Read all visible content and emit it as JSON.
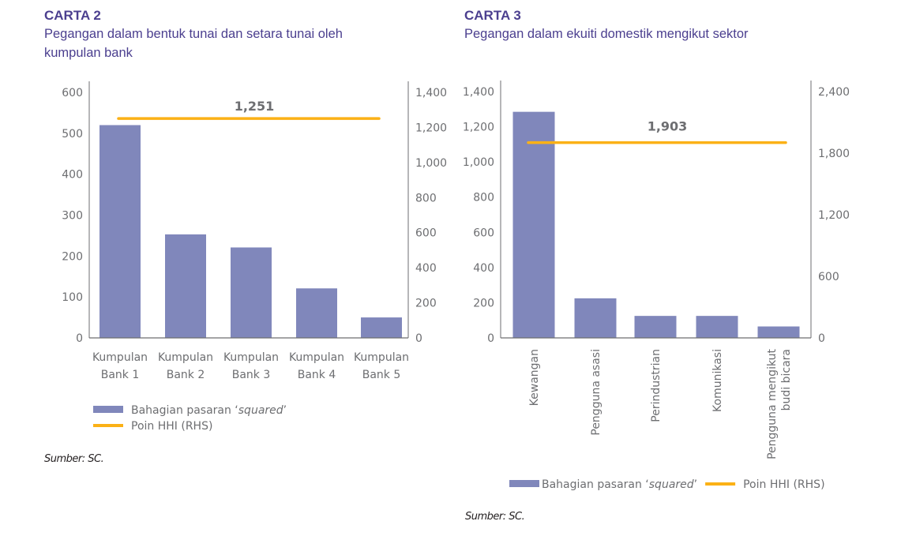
{
  "colors": {
    "bar": "#8087bb",
    "line": "#fbb116",
    "axis": "#6d6e71",
    "title": "#4b3f8f"
  },
  "chart_data": [
    {
      "type": "bar",
      "id": "carta-2",
      "title": "CARTA 2",
      "subtitle_lines": [
        "Pegangan dalam bentuk tunai dan setara tunai oleh",
        "kumpulan bank"
      ],
      "categories": [
        [
          "Kumpulan",
          "Bank 1"
        ],
        [
          "Kumpulan",
          "Bank 2"
        ],
        [
          "Kumpulan",
          "Bank 3"
        ],
        [
          "Kumpulan",
          "Bank 4"
        ],
        [
          "Kumpulan",
          "Bank 5"
        ]
      ],
      "series": [
        {
          "name": "Bahagian pasaran 'squared'",
          "type": "bar",
          "axis": "left",
          "values": [
            520,
            253,
            221,
            121,
            50
          ]
        },
        {
          "name": "Poin HHI (RHS)",
          "type": "line",
          "axis": "right",
          "values": [
            1251,
            1251,
            1251,
            1251,
            1251
          ],
          "label": "1,251"
        }
      ],
      "y_left": {
        "range": [
          0,
          600
        ],
        "ticks": [
          0,
          100,
          200,
          300,
          400,
          500,
          600
        ],
        "tick_labels": [
          "0",
          "100",
          "200",
          "300",
          "400",
          "500",
          "600"
        ]
      },
      "y_right": {
        "range": [
          0,
          1400
        ],
        "ticks": [
          0,
          200,
          400,
          600,
          800,
          1000,
          1200,
          1400
        ],
        "tick_labels": [
          "0",
          "200",
          "400",
          "600",
          "800",
          "1,000",
          "1,200",
          "1,400"
        ]
      },
      "xlabel": "",
      "ylabel": "",
      "grid": false,
      "legend": {
        "placement": "bottom-left",
        "items": [
          {
            "label_prefix": "Bahagian pasaran ‘",
            "label_italic": "squared",
            "label_suffix": "’",
            "kind": "bar"
          },
          {
            "label_prefix": "Poin HHI (RHS)",
            "label_italic": "",
            "label_suffix": "",
            "kind": "line"
          }
        ]
      },
      "source": "Sumber: SC."
    },
    {
      "type": "bar",
      "id": "carta-3",
      "title": "CARTA 3",
      "subtitle_lines": [
        "Pegangan dalam ekuiti domestik mengikut sektor"
      ],
      "categories": [
        [
          "Kewangan"
        ],
        [
          "Pengguna asasi"
        ],
        [
          "Perindustrian"
        ],
        [
          "Komunikasi"
        ],
        [
          "Pengguna mengikut",
          "budi bicara"
        ]
      ],
      "series": [
        {
          "name": "Bahagian pasaran 'squared'",
          "type": "bar",
          "axis": "left",
          "values": [
            1285,
            225,
            125,
            125,
            65
          ]
        },
        {
          "name": "Poin HHI (RHS)",
          "type": "line",
          "axis": "right",
          "values": [
            1903,
            1903,
            1903,
            1903,
            1903
          ],
          "label": "1,903"
        }
      ],
      "y_left": {
        "range": [
          0,
          1400
        ],
        "ticks": [
          0,
          200,
          400,
          600,
          800,
          1000,
          1200,
          1400
        ],
        "tick_labels": [
          "0",
          "200",
          "400",
          "600",
          "800",
          "1,000",
          "1,200",
          "1,400"
        ]
      },
      "y_right": {
        "range": [
          0,
          2400
        ],
        "ticks": [
          0,
          600,
          1200,
          1800,
          2400
        ],
        "tick_labels": [
          "0",
          "600",
          "1,200",
          "1,800",
          "2,400"
        ]
      },
      "xlabel": "",
      "ylabel": "",
      "grid": false,
      "legend": {
        "placement": "bottom",
        "items": [
          {
            "label_prefix": "Bahagian pasaran ‘",
            "label_italic": "squared",
            "label_suffix": "’",
            "kind": "bar"
          },
          {
            "label_prefix": "Poin HHI (RHS)",
            "label_italic": "",
            "label_suffix": "",
            "kind": "line"
          }
        ]
      },
      "source": "Sumber: SC."
    }
  ]
}
